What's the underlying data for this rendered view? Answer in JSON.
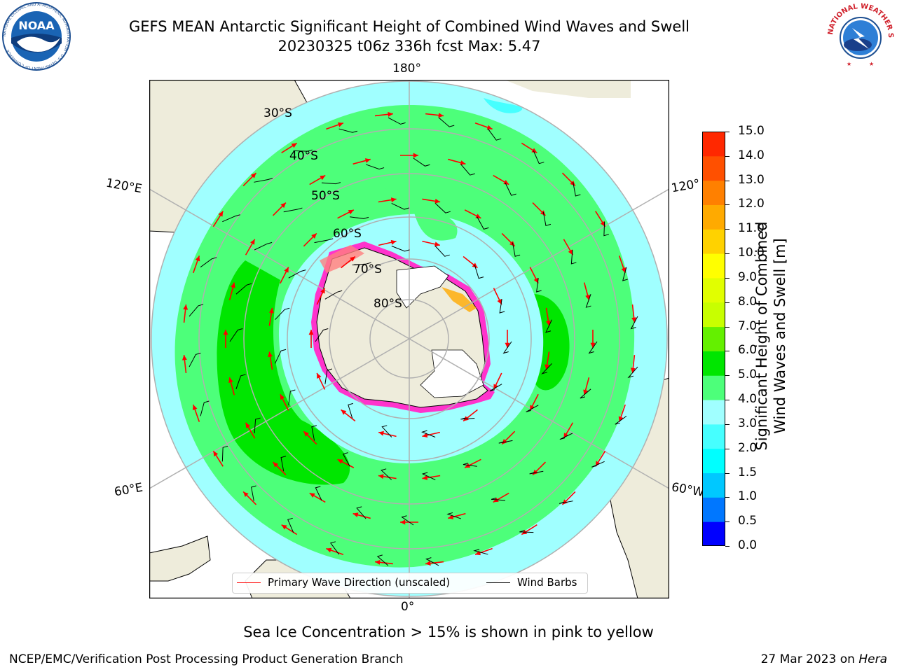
{
  "title": {
    "line1": "GEFS MEAN Antarctic Significant Height of Combined Wind Waves and Swell",
    "line2": "20230325 t06z 336h fcst   Max: 5.47"
  },
  "logos": {
    "left": {
      "name": "NOAA",
      "ring_text": "NATIONAL OCEANIC AND ATMOSPHERIC ADMINISTRATION · U.S. DEPARTMENT OF COMMERCE"
    },
    "right": {
      "name": "NATIONAL WEATHER SERVICE"
    }
  },
  "map": {
    "projection": "south-polar-stereographic",
    "longitude_labels": {
      "top": "180°",
      "bottom": "0°",
      "upper_left": "120°E",
      "lower_left": "60°E",
      "upper_right": "120°",
      "lower_right": "60°W"
    },
    "latitude_labels": [
      "30°S",
      "40°S",
      "50°S",
      "60°S",
      "70°S",
      "80°S"
    ],
    "colors": {
      "land": "#eeecdb",
      "ice_sheet": "#ffffff",
      "grid": "#b0b0b0",
      "arrow": "#ff0000",
      "barb": "#000000",
      "sea_ice": "#ff33cc"
    }
  },
  "legend": {
    "items": [
      {
        "label": "Primary Wave Direction (unscaled)",
        "color": "#ff0000"
      },
      {
        "label": "Wind Barbs",
        "color": "#000000"
      }
    ]
  },
  "colorbar": {
    "title_line1": "Significant Height of Combined",
    "title_line2": "Wind Waves and Swell [m]",
    "ticks": [
      "0.0",
      "0.5",
      "1.0",
      "1.5",
      "2.0",
      "3.0",
      "4.0",
      "5.0",
      "6.0",
      "7.0",
      "8.0",
      "9.0",
      "10.0",
      "11.0",
      "12.0",
      "13.0",
      "14.0",
      "15.0"
    ],
    "colors": [
      "#0000ff",
      "#0077ff",
      "#00c8ff",
      "#00ffff",
      "#46ffff",
      "#a0ffff",
      "#4dff7a",
      "#00e600",
      "#64f000",
      "#c8ff00",
      "#e1ff00",
      "#ffff00",
      "#ffd200",
      "#ffaa00",
      "#ff8000",
      "#ff5000",
      "#ff2800"
    ]
  },
  "chart_data": {
    "type": "heatmap",
    "variable": "Significant Height of Combined Wind Waves and Swell [m]",
    "max": 5.47,
    "cycle": "20230325 t06z",
    "forecast_hour": 336,
    "value_range": [
      0.0,
      15.0
    ]
  },
  "caption": "Sea Ice Concentration > 15% is shown in pink to yellow",
  "footer": {
    "left": "NCEP/EMC/Verification Post Processing Product Generation Branch",
    "right_date": "27 Mar 2023 on ",
    "right_machine": "Hera"
  }
}
